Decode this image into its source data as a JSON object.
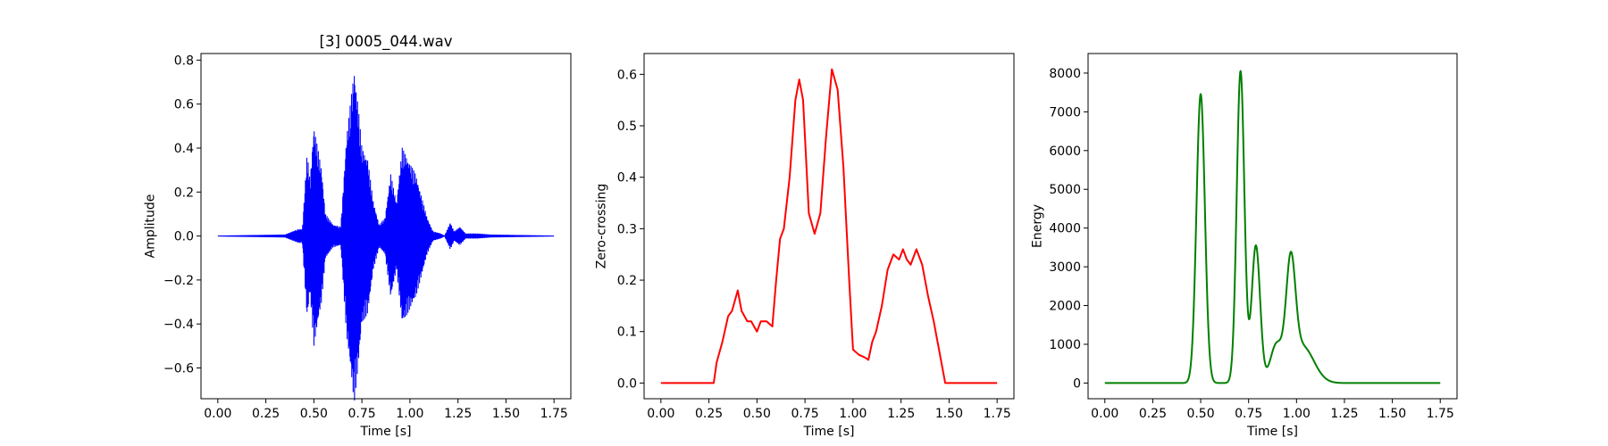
{
  "figure": {
    "background": "#ffffff"
  },
  "chart_data": [
    {
      "type": "line",
      "title": "[3] 0005_044.wav",
      "xlabel": "Time [s]",
      "ylabel": "Amplitude",
      "color": "#0000ff",
      "xlim": [
        -0.0875,
        1.8375
      ],
      "ylim": [
        -0.74,
        0.83
      ],
      "xticks": [
        0.0,
        0.25,
        0.5,
        0.75,
        1.0,
        1.25,
        1.5,
        1.75
      ],
      "xtick_labels": [
        "0.00",
        "0.25",
        "0.50",
        "0.75",
        "1.00",
        "1.25",
        "1.50",
        "1.75"
      ],
      "yticks": [
        -0.6,
        -0.4,
        -0.2,
        0.0,
        0.2,
        0.4,
        0.6,
        0.8
      ],
      "ytick_labels": [
        "−0.6",
        "−0.4",
        "−0.2",
        "0.0",
        "0.2",
        "0.4",
        "0.6",
        "0.8"
      ],
      "grid": false,
      "series": [
        {
          "envelope": [
            [
              0.0,
              0.0
            ],
            [
              0.35,
              0.005
            ],
            [
              0.39,
              0.02
            ],
            [
              0.42,
              0.03
            ],
            [
              0.44,
              0.03
            ],
            [
              0.465,
              0.38
            ],
            [
              0.48,
              0.25
            ],
            [
              0.5,
              0.5
            ],
            [
              0.52,
              0.4
            ],
            [
              0.54,
              0.3
            ],
            [
              0.56,
              0.1
            ],
            [
              0.6,
              0.05
            ],
            [
              0.64,
              0.04
            ],
            [
              0.67,
              0.45
            ],
            [
              0.69,
              0.6
            ],
            [
              0.71,
              0.76
            ],
            [
              0.73,
              0.6
            ],
            [
              0.75,
              0.4
            ],
            [
              0.78,
              0.35
            ],
            [
              0.81,
              0.15
            ],
            [
              0.84,
              0.05
            ],
            [
              0.87,
              0.08
            ],
            [
              0.9,
              0.28
            ],
            [
              0.93,
              0.15
            ],
            [
              0.96,
              0.4
            ],
            [
              1.0,
              0.33
            ],
            [
              1.03,
              0.28
            ],
            [
              1.06,
              0.18
            ],
            [
              1.09,
              0.08
            ],
            [
              1.12,
              0.02
            ],
            [
              1.16,
              0.01
            ],
            [
              1.18,
              0.0
            ],
            [
              1.21,
              0.06
            ],
            [
              1.23,
              0.02
            ],
            [
              1.26,
              0.04
            ],
            [
              1.29,
              0.01
            ],
            [
              1.35,
              0.01
            ],
            [
              1.42,
              0.005
            ],
            [
              1.75,
              0.0
            ]
          ]
        }
      ]
    },
    {
      "type": "line",
      "title": "",
      "xlabel": "Time [s]",
      "ylabel": "Zero-crossing",
      "color": "#ff0000",
      "xlim": [
        -0.0875,
        1.8375
      ],
      "ylim": [
        -0.0305,
        0.6405
      ],
      "xticks": [
        0.0,
        0.25,
        0.5,
        0.75,
        1.0,
        1.25,
        1.5,
        1.75
      ],
      "xtick_labels": [
        "0.00",
        "0.25",
        "0.50",
        "0.75",
        "1.00",
        "1.25",
        "1.50",
        "1.75"
      ],
      "yticks": [
        0.0,
        0.1,
        0.2,
        0.3,
        0.4,
        0.5,
        0.6
      ],
      "ytick_labels": [
        "0.0",
        "0.1",
        "0.2",
        "0.3",
        "0.4",
        "0.5",
        "0.6"
      ],
      "grid": false,
      "series": [
        {
          "x": [
            0.0,
            0.275,
            0.29,
            0.32,
            0.35,
            0.37,
            0.4,
            0.42,
            0.45,
            0.47,
            0.5,
            0.52,
            0.55,
            0.58,
            0.6,
            0.62,
            0.64,
            0.67,
            0.7,
            0.72,
            0.74,
            0.77,
            0.8,
            0.83,
            0.86,
            0.89,
            0.92,
            0.95,
            0.98,
            1.0,
            1.03,
            1.06,
            1.08,
            1.1,
            1.12,
            1.15,
            1.18,
            1.21,
            1.24,
            1.26,
            1.28,
            1.3,
            1.33,
            1.36,
            1.39,
            1.42,
            1.45,
            1.48,
            1.75
          ],
          "y": [
            0.0,
            0.0,
            0.04,
            0.08,
            0.13,
            0.14,
            0.18,
            0.14,
            0.12,
            0.12,
            0.1,
            0.12,
            0.12,
            0.11,
            0.2,
            0.28,
            0.3,
            0.4,
            0.55,
            0.59,
            0.55,
            0.33,
            0.29,
            0.33,
            0.48,
            0.61,
            0.57,
            0.42,
            0.2,
            0.065,
            0.055,
            0.05,
            0.045,
            0.08,
            0.1,
            0.15,
            0.22,
            0.25,
            0.24,
            0.26,
            0.24,
            0.23,
            0.26,
            0.23,
            0.17,
            0.12,
            0.06,
            0.0,
            0.0
          ]
        }
      ]
    },
    {
      "type": "line",
      "title": "",
      "xlabel": "Time [s]",
      "ylabel": "Energy",
      "color": "#008000",
      "xlim": [
        -0.0875,
        1.8375
      ],
      "ylim": [
        -405,
        8505
      ],
      "xticks": [
        0.0,
        0.25,
        0.5,
        0.75,
        1.0,
        1.25,
        1.5,
        1.75
      ],
      "xtick_labels": [
        "0.00",
        "0.25",
        "0.50",
        "0.75",
        "1.00",
        "1.25",
        "1.50",
        "1.75"
      ],
      "yticks": [
        0,
        1000,
        2000,
        3000,
        4000,
        5000,
        6000,
        7000,
        8000
      ],
      "ytick_labels": [
        "0",
        "1000",
        "2000",
        "3000",
        "4000",
        "5000",
        "6000",
        "7000",
        "8000"
      ],
      "grid": false,
      "series": [
        {
          "components": [
            {
              "center": 0.5,
              "height": 7460,
              "width": 0.022
            },
            {
              "center": 0.708,
              "height": 8050,
              "width": 0.02
            },
            {
              "center": 0.788,
              "height": 3550,
              "width": 0.022
            },
            {
              "center": 0.895,
              "height": 950,
              "width": 0.032
            },
            {
              "center": 0.97,
              "height": 2750,
              "width": 0.024
            },
            {
              "center": 1.03,
              "height": 950,
              "width": 0.06
            }
          ]
        }
      ]
    }
  ]
}
